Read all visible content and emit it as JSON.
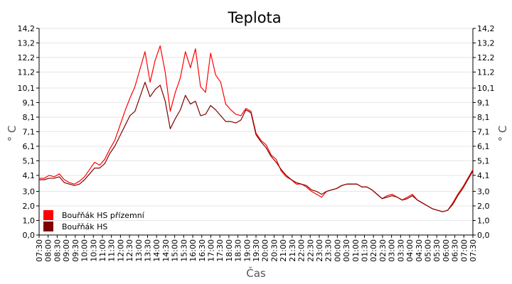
{
  "chart_data": {
    "type": "line",
    "title": "Teplota",
    "xlabel": "Čas",
    "ylabel": "° C",
    "ylim": [
      0,
      14.2
    ],
    "yticks": [
      "0,0",
      "1,0",
      "2,0",
      "3,0",
      "4,1",
      "5,1",
      "6,1",
      "7,1",
      "8,1",
      "9,1",
      "10,1",
      "11,2",
      "12,2",
      "13,2",
      "14,2"
    ],
    "yvalues": [
      0,
      1.0,
      2.0,
      3.0,
      4.1,
      5.1,
      6.1,
      7.1,
      8.1,
      9.1,
      10.1,
      11.2,
      12.2,
      13.2,
      14.2
    ],
    "xticks": [
      "07:30",
      "08:00",
      "08:30",
      "09:00",
      "09:30",
      "10:00",
      "10:30",
      "11:00",
      "11:30",
      "12:00",
      "12:30",
      "13:00",
      "13:30",
      "14:00",
      "14:30",
      "15:00",
      "15:30",
      "16:00",
      "16:30",
      "17:00",
      "17:30",
      "18:00",
      "18:30",
      "19:00",
      "19:30",
      "20:00",
      "20:30",
      "21:00",
      "21:30",
      "22:00",
      "22:30",
      "23:00",
      "23:30",
      "00:00",
      "00:30",
      "01:00",
      "01:30",
      "02:00",
      "02:30",
      "03:00",
      "03:30",
      "04:00",
      "04:30",
      "05:00",
      "05:30",
      "06:00",
      "06:30",
      "07:00",
      "07:30"
    ],
    "grid": true,
    "legend_position": "bottom-left",
    "series": [
      {
        "name": "Bouřňák HS přízemní",
        "color": "#ff0000",
        "values": [
          3.9,
          3.9,
          4.1,
          4.0,
          4.2,
          3.8,
          3.6,
          3.5,
          3.7,
          4.0,
          4.5,
          5.0,
          4.8,
          5.2,
          5.9,
          6.5,
          7.5,
          8.5,
          9.4,
          10.2,
          11.4,
          12.6,
          10.5,
          12.0,
          13.0,
          11.2,
          8.5,
          9.8,
          10.8,
          12.6,
          11.5,
          12.8,
          10.2,
          9.8,
          12.5,
          11.0,
          10.5,
          9.0,
          8.6,
          8.3,
          8.2,
          8.7,
          8.5,
          7.0,
          6.5,
          6.2,
          5.5,
          5.2,
          4.4,
          4.0,
          3.8,
          3.5,
          3.5,
          3.3,
          3.0,
          2.8,
          2.6,
          3.0,
          3.1,
          3.2,
          3.4,
          3.5,
          3.5,
          3.5,
          3.3,
          3.3,
          3.1,
          2.8,
          2.5,
          2.7,
          2.8,
          2.6,
          2.4,
          2.6,
          2.8,
          2.4,
          2.2,
          2.0,
          1.8,
          1.7,
          1.6,
          1.7,
          2.2,
          2.8,
          3.3,
          3.9,
          4.5
        ]
      },
      {
        "name": "Bouřňák HS",
        "color": "#800000",
        "values": [
          3.8,
          3.8,
          3.9,
          3.9,
          4.0,
          3.6,
          3.5,
          3.4,
          3.5,
          3.8,
          4.2,
          4.6,
          4.6,
          4.9,
          5.6,
          6.1,
          6.8,
          7.5,
          8.2,
          8.5,
          9.5,
          10.5,
          9.5,
          10.0,
          10.3,
          9.2,
          7.3,
          8.0,
          8.6,
          9.6,
          9.0,
          9.2,
          8.2,
          8.3,
          8.9,
          8.6,
          8.2,
          7.8,
          7.8,
          7.7,
          7.9,
          8.6,
          8.4,
          6.9,
          6.4,
          6.0,
          5.4,
          5.0,
          4.5,
          4.1,
          3.8,
          3.6,
          3.5,
          3.4,
          3.1,
          3.0,
          2.8,
          3.0,
          3.1,
          3.2,
          3.4,
          3.5,
          3.5,
          3.5,
          3.3,
          3.3,
          3.1,
          2.8,
          2.5,
          2.6,
          2.7,
          2.6,
          2.4,
          2.5,
          2.7,
          2.4,
          2.2,
          2.0,
          1.8,
          1.7,
          1.6,
          1.7,
          2.1,
          2.7,
          3.2,
          3.8,
          4.4
        ]
      }
    ]
  }
}
